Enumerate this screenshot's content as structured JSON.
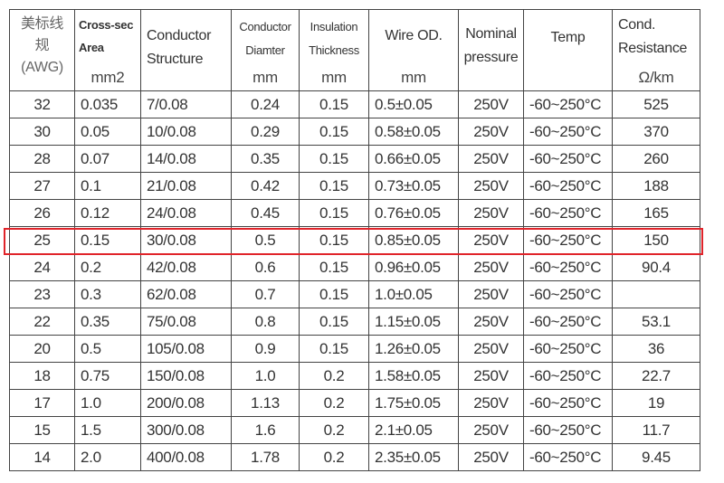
{
  "headers": [
    {
      "label": "美标线规(AWG)",
      "unit": ""
    },
    {
      "label": "Cross-sec Area",
      "unit": "mm2"
    },
    {
      "label": "Conductor Structure",
      "unit": ""
    },
    {
      "label": "Conductor Diamter",
      "unit": "mm"
    },
    {
      "label": "Insulation Thickness",
      "unit": "mm"
    },
    {
      "label": "Wire OD.",
      "unit": "mm"
    },
    {
      "label": "Nominal pressure",
      "unit": ""
    },
    {
      "label": "Temp",
      "unit": ""
    },
    {
      "label": "Cond. Resistance",
      "unit": "Ω/km"
    }
  ],
  "rows": [
    [
      "32",
      "0.035",
      "7/0.08",
      "0.24",
      "0.15",
      "0.5±0.05",
      "250V",
      "-60~250°C",
      "525"
    ],
    [
      "30",
      "0.05",
      "10/0.08",
      "0.29",
      "0.15",
      "0.58±0.05",
      "250V",
      "-60~250°C",
      "370"
    ],
    [
      "28",
      "0.07",
      "14/0.08",
      "0.35",
      "0.15",
      "0.66±0.05",
      "250V",
      "-60~250°C",
      "260"
    ],
    [
      "27",
      "0.1",
      "21/0.08",
      "0.42",
      "0.15",
      "0.73±0.05",
      "250V",
      "-60~250°C",
      "188"
    ],
    [
      "26",
      "0.12",
      "24/0.08",
      "0.45",
      "0.15",
      "0.76±0.05",
      "250V",
      "-60~250°C",
      "165"
    ],
    [
      "25",
      "0.15",
      "30/0.08",
      "0.5",
      "0.15",
      "0.85±0.05",
      "250V",
      "-60~250°C",
      "150"
    ],
    [
      "24",
      "0.2",
      "42/0.08",
      "0.6",
      "0.15",
      "0.96±0.05",
      "250V",
      "-60~250°C",
      "90.4"
    ],
    [
      "23",
      "0.3",
      "62/0.08",
      "0.7",
      "0.15",
      "1.0±0.05",
      "250V",
      "-60~250°C",
      ""
    ],
    [
      "22",
      "0.35",
      "75/0.08",
      "0.8",
      "0.15",
      "1.15±0.05",
      "250V",
      "-60~250°C",
      "53.1"
    ],
    [
      "20",
      "0.5",
      "105/0.08",
      "0.9",
      "0.15",
      "1.26±0.05",
      "250V",
      "-60~250°C",
      "36"
    ],
    [
      "18",
      "0.75",
      "150/0.08",
      "1.0",
      "0.2",
      "1.58±0.05",
      "250V",
      "-60~250°C",
      "22.7"
    ],
    [
      "17",
      "1.0",
      "200/0.08",
      "1.13",
      "0.2",
      "1.75±0.05",
      "250V",
      "-60~250°C",
      "19"
    ],
    [
      "15",
      "1.5",
      "300/0.08",
      "1.6",
      "0.2",
      "2.1±0.05",
      "250V",
      "-60~250°C",
      "11.7"
    ],
    [
      "14",
      "2.0",
      "400/0.08",
      "1.78",
      "0.2",
      "2.35±0.05",
      "250V",
      "-60~250°C",
      "9.45"
    ]
  ],
  "highlighted_row": "25",
  "highlight_color": "#e0242a"
}
